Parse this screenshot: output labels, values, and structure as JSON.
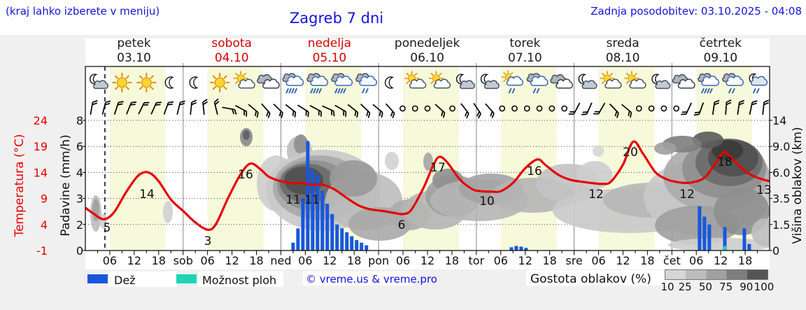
{
  "header": {
    "hint": "(kraj lahko izberete v meniju)",
    "title": "Zagreb 7 dni",
    "updated": "Zadnja posodobitev: 03.10.2025 - 04:08"
  },
  "days": [
    {
      "name": "petek",
      "date": "03.10",
      "weekend": false
    },
    {
      "name": "sobota",
      "date": "04.10",
      "weekend": true
    },
    {
      "name": "nedelja",
      "date": "05.10",
      "weekend": true
    },
    {
      "name": "ponedeljek",
      "date": "06.10",
      "weekend": false
    },
    {
      "name": "torek",
      "date": "07.10",
      "weekend": false
    },
    {
      "name": "sreda",
      "date": "08.10",
      "weekend": false
    },
    {
      "name": "četrtek",
      "date": "09.10",
      "weekend": false
    }
  ],
  "axes": {
    "temp_label": "Temperatura (°C)",
    "temp_ticks": [
      "24",
      "19",
      "14",
      "9",
      "4",
      "-1"
    ],
    "precip_label": "Padavine (mm/h)",
    "precip_ticks": [
      "8",
      "6",
      "4",
      "3",
      "2",
      "0"
    ],
    "cloud_label": "Višina oblakov (km)",
    "cloud_ticks": [
      "14",
      "9.0",
      "6.0",
      "3.5",
      "1.5",
      "0"
    ],
    "x_ticks": [
      "06",
      "12",
      "18",
      "sob",
      "06",
      "12",
      "18",
      "ned",
      "06",
      "12",
      "18",
      "pon",
      "06",
      "12",
      "18",
      "tor",
      "06",
      "12",
      "18",
      "sre",
      "06",
      "12",
      "18",
      "čet",
      "06",
      "12",
      "18"
    ]
  },
  "legend": {
    "rain": "Dež",
    "showers": "Možnost ploh",
    "credit": "© vreme.us & vreme.pro",
    "cloud_density": "Gostota oblakov (%)",
    "density_ticks": [
      "10",
      "25",
      "50",
      "75",
      "90",
      "100"
    ]
  },
  "colors": {
    "accent_blue": "#1414dd",
    "temp_line": "#e60000",
    "rain_bar": "#1857dd",
    "shower_bar": "#1fd4b4",
    "day_band": "#f6f9da",
    "weekend_red": "#d40000",
    "panel_gray": "#f0f0f0"
  },
  "chart_data": {
    "type": "meteogram (line + bar + cloud contours)",
    "title": "Zagreb 7 dni",
    "x_axis": {
      "unit": "hour",
      "range_hours": [
        0,
        168
      ],
      "minor_tick_h": 3,
      "major_tick_h": 6
    },
    "daylight_band_hours": [
      6,
      19.7
    ],
    "now_line_hour": 4.8,
    "temperature": {
      "unit": "°C",
      "axis_ticks": [
        24,
        19,
        14,
        9,
        4,
        -1
      ],
      "series": [
        [
          0,
          7.2
        ],
        [
          2,
          6.1
        ],
        [
          4.5,
          5.0
        ],
        [
          7,
          6.3
        ],
        [
          10,
          10.2
        ],
        [
          13,
          13.4
        ],
        [
          15.5,
          14.0
        ],
        [
          18,
          12.3
        ],
        [
          21,
          8.8
        ],
        [
          24,
          6.6
        ],
        [
          27,
          4.4
        ],
        [
          30,
          3.0
        ],
        [
          32,
          4.0
        ],
        [
          35,
          9.0
        ],
        [
          38,
          13.5
        ],
        [
          40.5,
          15.7
        ],
        [
          43,
          14.6
        ],
        [
          45,
          13.2
        ],
        [
          48,
          12.3
        ],
        [
          51,
          11.9
        ],
        [
          53,
          12.0
        ],
        [
          56,
          11.6
        ],
        [
          58,
          11.7
        ],
        [
          61,
          10.8
        ],
        [
          64,
          9.2
        ],
        [
          67,
          7.7
        ],
        [
          70,
          6.9
        ],
        [
          73,
          6.6
        ],
        [
          76,
          6.2
        ],
        [
          78,
          6.0
        ],
        [
          80,
          6.8
        ],
        [
          83,
          11.0
        ],
        [
          85.5,
          15.5
        ],
        [
          87,
          17.0
        ],
        [
          89,
          15.8
        ],
        [
          92,
          12.6
        ],
        [
          95,
          10.8
        ],
        [
          97,
          10.4
        ],
        [
          100,
          10.3
        ],
        [
          102,
          10.4
        ],
        [
          105,
          12.0
        ],
        [
          108,
          14.8
        ],
        [
          111,
          16.5
        ],
        [
          113,
          15.4
        ],
        [
          116,
          13.6
        ],
        [
          119,
          12.6
        ],
        [
          122,
          12.2
        ],
        [
          125,
          11.9
        ],
        [
          127,
          11.8
        ],
        [
          129,
          12.2
        ],
        [
          132,
          15.5
        ],
        [
          134.5,
          19.9
        ],
        [
          137,
          17.5
        ],
        [
          140,
          14.0
        ],
        [
          143,
          12.6
        ],
        [
          145,
          12.2
        ],
        [
          147,
          12.0
        ],
        [
          149,
          12.1
        ],
        [
          152,
          13.0
        ],
        [
          155,
          16.0
        ],
        [
          156.8,
          17.9
        ],
        [
          159,
          16.5
        ],
        [
          162,
          14.2
        ],
        [
          165,
          13.0
        ],
        [
          168,
          12.3
        ]
      ],
      "labels": [
        {
          "text": "5",
          "x": 153,
          "y": 331
        },
        {
          "text": "14",
          "x": 210,
          "y": 283
        },
        {
          "text": "3",
          "x": 297,
          "y": 350
        },
        {
          "text": "16",
          "x": 351,
          "y": 255
        },
        {
          "text": "11",
          "x": 419,
          "y": 291
        },
        {
          "text": "11",
          "x": 446,
          "y": 291
        },
        {
          "text": "6",
          "x": 574,
          "y": 327
        },
        {
          "text": "17",
          "x": 626,
          "y": 245
        },
        {
          "text": "10",
          "x": 696,
          "y": 293
        },
        {
          "text": "16",
          "x": 764,
          "y": 250
        },
        {
          "text": "12",
          "x": 852,
          "y": 283
        },
        {
          "text": "20",
          "x": 901,
          "y": 223
        },
        {
          "text": "12",
          "x": 982,
          "y": 283
        },
        {
          "text": "18",
          "x": 1036,
          "y": 237
        },
        {
          "text": "13",
          "x": 1092,
          "y": 277
        }
      ]
    },
    "precipitation": {
      "unit": "mm/h",
      "axis_ticks": [
        8,
        6,
        4,
        3,
        2,
        0
      ],
      "rain": [
        [
          51,
          0.6
        ],
        [
          52.2,
          1.7
        ],
        [
          53.4,
          3.0
        ],
        [
          54.6,
          6.4
        ],
        [
          55.8,
          4.2
        ],
        [
          57,
          3.9
        ],
        [
          58.2,
          3.3
        ],
        [
          59.4,
          2.8
        ],
        [
          60.6,
          2.4
        ],
        [
          61.8,
          2.0
        ],
        [
          63,
          1.7
        ],
        [
          64.2,
          1.4
        ],
        [
          65.4,
          1.1
        ],
        [
          66.6,
          0.8
        ],
        [
          67.8,
          0.6
        ],
        [
          69,
          0.4
        ],
        [
          104.6,
          0.25
        ],
        [
          105.8,
          0.35
        ],
        [
          107,
          0.3
        ],
        [
          108.2,
          0.2
        ],
        [
          150.8,
          2.7
        ],
        [
          152,
          2.3
        ],
        [
          153.2,
          2.0
        ],
        [
          157,
          1.8
        ],
        [
          161.8,
          1.7
        ],
        [
          163,
          0.5
        ]
      ],
      "showers": [
        [
          157,
          0.35
        ]
      ]
    },
    "cloud_height_axis": {
      "unit": "km",
      "ticks": [
        "14",
        "9.0",
        "6.0",
        "3.5",
        "1.5",
        "0"
      ]
    },
    "cloud_blobs": [
      [
        137,
        305,
        8,
        26,
        "#bdbdbd"
      ],
      [
        137,
        300,
        5,
        16,
        "#9e9e9e"
      ],
      [
        148,
        316,
        5,
        11,
        "#cfcfcf"
      ],
      [
        240,
        303,
        7,
        16,
        "#cfcfcf"
      ],
      [
        352,
        196,
        9,
        13,
        "#8a8a8a"
      ],
      [
        352,
        193,
        5,
        7,
        "#5f5f5f"
      ],
      [
        395,
        262,
        28,
        40,
        "#cdcdcd"
      ],
      [
        428,
        216,
        18,
        22,
        "#bdbdbd"
      ],
      [
        430,
        206,
        10,
        14,
        "#8f8f8f"
      ],
      [
        462,
        272,
        82,
        58,
        "#c9c9c9"
      ],
      [
        456,
        268,
        66,
        46,
        "#a9a9a9"
      ],
      [
        448,
        265,
        52,
        36,
        "#8f8f8f"
      ],
      [
        440,
        262,
        40,
        28,
        "#6b6b6b"
      ],
      [
        434,
        258,
        28,
        20,
        "#4f4f4f"
      ],
      [
        520,
        287,
        55,
        42,
        "#bdbdbd"
      ],
      [
        505,
        255,
        34,
        26,
        "#9a9a9a"
      ],
      [
        543,
        320,
        45,
        24,
        "#a9a9a9"
      ],
      [
        560,
        230,
        10,
        13,
        "#d2d2d2"
      ],
      [
        585,
        307,
        30,
        22,
        "#ababab"
      ],
      [
        622,
        300,
        46,
        28,
        "#b5b5b5"
      ],
      [
        648,
        280,
        40,
        30,
        "#9e9e9e"
      ],
      [
        640,
        257,
        22,
        16,
        "#8f8f8f"
      ],
      [
        612,
        231,
        7,
        13,
        "#a5a5a5"
      ],
      [
        685,
        286,
        70,
        30,
        "#b5b5b5"
      ],
      [
        702,
        270,
        46,
        22,
        "#a3a3a3"
      ],
      [
        762,
        279,
        60,
        25,
        "#b5b5b5"
      ],
      [
        812,
        262,
        46,
        28,
        "#c2c2c2"
      ],
      [
        850,
        250,
        25,
        20,
        "#cdcdcd"
      ],
      [
        855,
        216,
        8,
        8,
        "#d6d6d6"
      ],
      [
        900,
        301,
        110,
        32,
        "#c9c9c9"
      ],
      [
        932,
        286,
        70,
        25,
        "#b7b7b7"
      ],
      [
        1010,
        282,
        90,
        55,
        "#c9c9c9"
      ],
      [
        1024,
        252,
        76,
        50,
        "#ababab"
      ],
      [
        1035,
        241,
        60,
        42,
        "#8f8f8f"
      ],
      [
        1042,
        232,
        48,
        34,
        "#6b6b6b"
      ],
      [
        1048,
        226,
        36,
        26,
        "#4f4f4f"
      ],
      [
        1040,
        215,
        22,
        15,
        "#3a3a3a"
      ],
      [
        1012,
        200,
        22,
        12,
        "#5a5a5a"
      ],
      [
        975,
        206,
        28,
        12,
        "#7d7d7d"
      ],
      [
        951,
        212,
        16,
        9,
        "#9e9e9e"
      ],
      [
        996,
        322,
        60,
        28,
        "#9e9e9e"
      ],
      [
        1060,
        302,
        40,
        34,
        "#8f8f8f"
      ],
      [
        1030,
        350,
        75,
        10,
        "#cdcdcd"
      ],
      [
        1094,
        332,
        20,
        20,
        "#bdbdbd"
      ]
    ],
    "weather_icons": [
      "moon-cloud",
      "sun",
      "sun",
      "moon",
      "moon",
      "sun",
      "sun-cloud",
      "cloud",
      "rain",
      "rain",
      "rain",
      "rain-light",
      "moon",
      "sun-cloud",
      "sun-cloud",
      "moon-cloud",
      "moon-cloud",
      "sun-cloud-rain",
      "rain-light",
      "cloud",
      "moon-cloud",
      "sun-cloud",
      "sun-cloud",
      "moon-cloud",
      "cloud",
      "rain",
      "rain-light",
      "moon-cloud-rain"
    ],
    "wind_barbs": [
      10,
      14,
      18,
      22,
      26,
      24,
      20,
      14,
      6,
      -6,
      -14,
      100,
      118,
      130,
      138,
      134,
      128,
      122,
      118,
      114,
      120,
      128,
      134,
      130,
      138,
      "o",
      "o",
      "o",
      132,
      "o",
      142,
      146,
      138,
      "o",
      "o",
      "o",
      "o",
      "o",
      "o",
      208,
      204,
      210,
      136,
      130,
      "o",
      "o",
      "o",
      "o",
      205,
      200,
      8,
      4,
      8,
      12,
      6
    ]
  }
}
